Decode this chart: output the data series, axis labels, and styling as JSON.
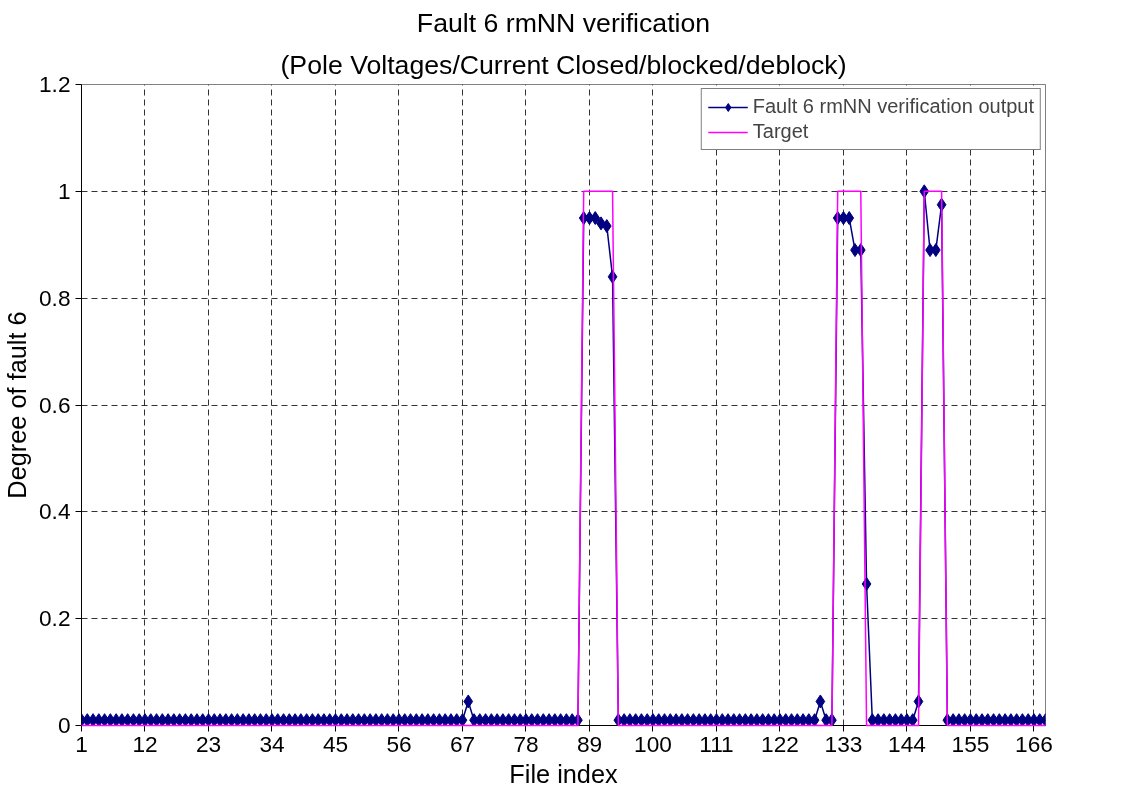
{
  "chart_data": {
    "type": "line",
    "title": "Fault 6 rmNN verification",
    "subtitle": "(Pole Voltages/Current Closed/blocked/deblock)",
    "xlabel": "File index",
    "ylabel": "Degree of fault 6",
    "x": [
      1,
      2,
      3,
      4,
      5,
      6,
      7,
      8,
      9,
      10,
      11,
      12,
      13,
      14,
      15,
      16,
      17,
      18,
      19,
      20,
      21,
      22,
      23,
      24,
      25,
      26,
      27,
      28,
      29,
      30,
      31,
      32,
      33,
      34,
      35,
      36,
      37,
      38,
      39,
      40,
      41,
      42,
      43,
      44,
      45,
      46,
      47,
      48,
      49,
      50,
      51,
      52,
      53,
      54,
      55,
      56,
      57,
      58,
      59,
      60,
      61,
      62,
      63,
      64,
      65,
      66,
      67,
      68,
      69,
      70,
      71,
      72,
      73,
      74,
      75,
      76,
      77,
      78,
      79,
      80,
      81,
      82,
      83,
      84,
      85,
      86,
      87,
      88,
      89,
      90,
      91,
      92,
      93,
      94,
      95,
      96,
      97,
      98,
      99,
      100,
      101,
      102,
      103,
      104,
      105,
      106,
      107,
      108,
      109,
      110,
      111,
      112,
      113,
      114,
      115,
      116,
      117,
      118,
      119,
      120,
      121,
      122,
      123,
      124,
      125,
      126,
      127,
      128,
      129,
      130,
      131,
      132,
      133,
      134,
      135,
      136,
      137,
      138,
      139,
      140,
      141,
      142,
      143,
      144,
      145,
      146,
      147,
      148,
      149,
      150,
      151,
      152,
      153,
      154,
      155,
      156,
      157,
      158,
      159,
      160,
      161,
      162,
      163,
      164,
      165,
      166,
      167,
      168
    ],
    "series": [
      {
        "name": "Fault 6 rmNN verification output",
        "color": "#000080",
        "marker": "diamond",
        "values": [
          0.01,
          0.01,
          0.01,
          0.01,
          0.01,
          0.01,
          0.01,
          0.01,
          0.01,
          0.01,
          0.01,
          0.01,
          0.01,
          0.01,
          0.01,
          0.01,
          0.01,
          0.01,
          0.01,
          0.01,
          0.01,
          0.01,
          0.01,
          0.01,
          0.01,
          0.01,
          0.01,
          0.01,
          0.01,
          0.01,
          0.01,
          0.01,
          0.01,
          0.01,
          0.01,
          0.01,
          0.01,
          0.01,
          0.01,
          0.01,
          0.01,
          0.01,
          0.01,
          0.01,
          0.01,
          0.01,
          0.01,
          0.01,
          0.01,
          0.01,
          0.01,
          0.01,
          0.01,
          0.01,
          0.01,
          0.01,
          0.01,
          0.01,
          0.01,
          0.01,
          0.01,
          0.01,
          0.01,
          0.01,
          0.01,
          0.01,
          0.01,
          0.045,
          0.01,
          0.01,
          0.01,
          0.01,
          0.01,
          0.01,
          0.01,
          0.01,
          0.01,
          0.01,
          0.01,
          0.01,
          0.01,
          0.01,
          0.01,
          0.01,
          0.01,
          0.01,
          0.01,
          0.95,
          0.95,
          0.95,
          0.94,
          0.935,
          0.84,
          0.01,
          0.01,
          0.01,
          0.01,
          0.01,
          0.01,
          0.01,
          0.01,
          0.01,
          0.01,
          0.01,
          0.01,
          0.01,
          0.01,
          0.01,
          0.01,
          0.01,
          0.01,
          0.01,
          0.01,
          0.01,
          0.01,
          0.01,
          0.01,
          0.01,
          0.01,
          0.01,
          0.01,
          0.01,
          0.01,
          0.01,
          0.01,
          0.01,
          0.01,
          0.01,
          0.045,
          0.01,
          0.01,
          0.95,
          0.95,
          0.95,
          0.89,
          0.89,
          0.265,
          0.01,
          0.01,
          0.01,
          0.01,
          0.01,
          0.01,
          0.01,
          0.01,
          0.045,
          1,
          0.89,
          0.89,
          0.975,
          0.01,
          0.01,
          0.01,
          0.01,
          0.01,
          0.01,
          0.01,
          0.01,
          0.01,
          0.01,
          0.01,
          0.01,
          0.01,
          0.01,
          0.01,
          0.01,
          0.01,
          0.01
        ]
      },
      {
        "name": "Target",
        "color": "#ff00ff",
        "marker": "none",
        "values": [
          0,
          0,
          0,
          0,
          0,
          0,
          0,
          0,
          0,
          0,
          0,
          0,
          0,
          0,
          0,
          0,
          0,
          0,
          0,
          0,
          0,
          0,
          0,
          0,
          0,
          0,
          0,
          0,
          0,
          0,
          0,
          0,
          0,
          0,
          0,
          0,
          0,
          0,
          0,
          0,
          0,
          0,
          0,
          0,
          0,
          0,
          0,
          0,
          0,
          0,
          0,
          0,
          0,
          0,
          0,
          0,
          0,
          0,
          0,
          0,
          0,
          0,
          0,
          0,
          0,
          0,
          0,
          0,
          0,
          0,
          0,
          0,
          0,
          0,
          0,
          0,
          0,
          0,
          0,
          0,
          0,
          0,
          0,
          0,
          0,
          0,
          0,
          1,
          1,
          1,
          1,
          1,
          1,
          0,
          0,
          0,
          0,
          0,
          0,
          0,
          0,
          0,
          0,
          0,
          0,
          0,
          0,
          0,
          0,
          0,
          0,
          0,
          0,
          0,
          0,
          0,
          0,
          0,
          0,
          0,
          0,
          0,
          0,
          0,
          0,
          0,
          0,
          0,
          0,
          0,
          0,
          1,
          1,
          1,
          1,
          1,
          0,
          0,
          0,
          0,
          0,
          0,
          0,
          0,
          0,
          0,
          1,
          1,
          1,
          1,
          0,
          0,
          0,
          0,
          0,
          0,
          0,
          0,
          0,
          0,
          0,
          0,
          0,
          0,
          0,
          0,
          0,
          0
        ]
      }
    ],
    "xlim": [
      1,
      168
    ],
    "xticks": [
      1,
      12,
      23,
      34,
      45,
      56,
      67,
      78,
      89,
      100,
      111,
      122,
      133,
      144,
      155,
      166
    ],
    "ylim": [
      0,
      1.2
    ],
    "yticks": [
      0,
      0.2,
      0.4,
      0.6,
      0.8,
      1,
      1.2
    ],
    "grid": true,
    "legend": "top right",
    "line_style": "solid"
  }
}
